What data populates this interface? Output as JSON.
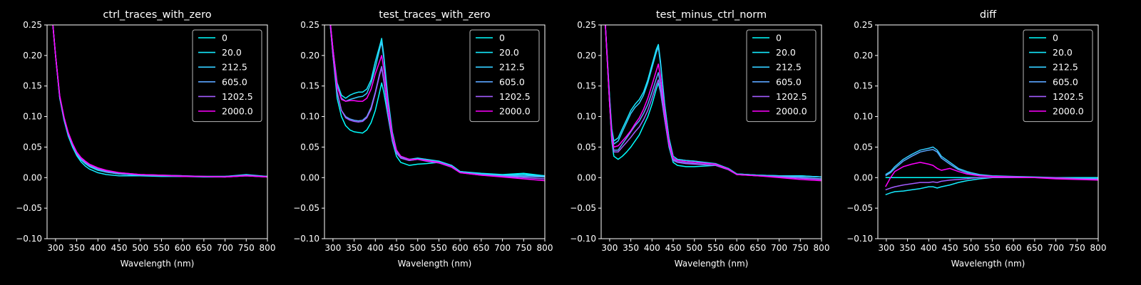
{
  "figure": {
    "background": "#000000",
    "foreground": "#ffffff"
  },
  "legend_labels": [
    "0",
    "20.0",
    "212.5",
    "605.0",
    "1202.5",
    "2000.0"
  ],
  "series_colors": [
    "#00ffff",
    "#14ebff",
    "#33ccff",
    "#5aa5ff",
    "#a35cff",
    "#ff00ff"
  ],
  "chart_data": [
    {
      "type": "line",
      "title": "ctrl_traces_with_zero",
      "xlabel": "Wavelength (nm)",
      "ylabel": "",
      "xlim": [
        280,
        800
      ],
      "ylim": [
        -0.1,
        0.25
      ],
      "xticks": [
        300,
        350,
        400,
        450,
        500,
        550,
        600,
        650,
        700,
        750,
        800
      ],
      "yticks": [
        -0.1,
        -0.05,
        0.0,
        0.05,
        0.1,
        0.15,
        0.2,
        0.25
      ],
      "ytick_labels": [
        "−0.10",
        "−0.05",
        "0.00",
        "0.05",
        "0.10",
        "0.15",
        "0.20",
        "0.25"
      ],
      "legend": "upper right",
      "x": [
        290,
        300,
        310,
        320,
        330,
        340,
        350,
        360,
        370,
        380,
        400,
        420,
        450,
        500,
        550,
        600,
        650,
        700,
        750,
        800
      ],
      "series": [
        {
          "name": "0",
          "values": [
            0.28,
            0.2,
            0.13,
            0.095,
            0.07,
            0.052,
            0.038,
            0.029,
            0.023,
            0.018,
            0.012,
            0.009,
            0.006,
            0.004,
            0.003,
            0.002,
            0.002,
            0.002,
            0.004,
            0.002
          ]
        },
        {
          "name": "20.0",
          "values": [
            0.28,
            0.2,
            0.13,
            0.094,
            0.068,
            0.05,
            0.036,
            0.026,
            0.019,
            0.014,
            0.008,
            0.005,
            0.003,
            0.003,
            0.002,
            0.002,
            0.001,
            0.001,
            0.003,
            0.001
          ]
        },
        {
          "name": "212.5",
          "values": [
            0.28,
            0.2,
            0.132,
            0.097,
            0.072,
            0.054,
            0.04,
            0.031,
            0.025,
            0.02,
            0.014,
            0.01,
            0.007,
            0.005,
            0.004,
            0.003,
            0.002,
            0.002,
            0.005,
            0.002
          ]
        },
        {
          "name": "605.0",
          "values": [
            0.28,
            0.2,
            0.131,
            0.096,
            0.071,
            0.053,
            0.039,
            0.03,
            0.024,
            0.019,
            0.013,
            0.009,
            0.006,
            0.004,
            0.003,
            0.002,
            0.002,
            0.002,
            0.004,
            0.002
          ]
        },
        {
          "name": "1202.5",
          "values": [
            0.28,
            0.2,
            0.133,
            0.098,
            0.073,
            0.055,
            0.041,
            0.032,
            0.026,
            0.021,
            0.015,
            0.011,
            0.008,
            0.005,
            0.004,
            0.003,
            0.002,
            0.001,
            0.003,
            0.001
          ]
        },
        {
          "name": "2000.0",
          "values": [
            0.28,
            0.2,
            0.134,
            0.099,
            0.074,
            0.056,
            0.042,
            0.033,
            0.027,
            0.022,
            0.016,
            0.012,
            0.008,
            0.005,
            0.004,
            0.002,
            0.002,
            0.001,
            0.003,
            0.001
          ]
        }
      ]
    },
    {
      "type": "line",
      "title": "test_traces_with_zero",
      "xlabel": "Wavelength (nm)",
      "ylabel": "",
      "xlim": [
        280,
        800
      ],
      "ylim": [
        -0.1,
        0.25
      ],
      "xticks": [
        300,
        350,
        400,
        450,
        500,
        550,
        600,
        650,
        700,
        750,
        800
      ],
      "yticks": [
        -0.1,
        -0.05,
        0.0,
        0.05,
        0.1,
        0.15,
        0.2,
        0.25
      ],
      "ytick_labels": [
        "−0.10",
        "−0.05",
        "0.00",
        "0.05",
        "0.10",
        "0.15",
        "0.20",
        "0.25"
      ],
      "legend": "upper right",
      "x": [
        290,
        300,
        310,
        320,
        330,
        340,
        350,
        360,
        370,
        380,
        390,
        400,
        410,
        415,
        420,
        430,
        440,
        450,
        460,
        480,
        500,
        520,
        550,
        580,
        600,
        650,
        700,
        750,
        800
      ],
      "series": [
        {
          "name": "0",
          "values": [
            0.28,
            0.2,
            0.13,
            0.1,
            0.085,
            0.078,
            0.075,
            0.074,
            0.073,
            0.078,
            0.09,
            0.11,
            0.14,
            0.155,
            0.14,
            0.1,
            0.06,
            0.035,
            0.025,
            0.02,
            0.022,
            0.023,
            0.025,
            0.02,
            0.01,
            0.007,
            0.005,
            0.007,
            0.003
          ]
        },
        {
          "name": "20.0",
          "values": [
            0.28,
            0.21,
            0.155,
            0.135,
            0.13,
            0.135,
            0.138,
            0.14,
            0.14,
            0.145,
            0.16,
            0.19,
            0.215,
            0.228,
            0.2,
            0.13,
            0.075,
            0.045,
            0.035,
            0.03,
            0.032,
            0.03,
            0.027,
            0.02,
            0.01,
            0.006,
            0.004,
            0.005,
            0.003
          ]
        },
        {
          "name": "212.5",
          "values": [
            0.28,
            0.21,
            0.15,
            0.13,
            0.125,
            0.128,
            0.13,
            0.132,
            0.133,
            0.138,
            0.155,
            0.18,
            0.21,
            0.222,
            0.195,
            0.125,
            0.072,
            0.043,
            0.034,
            0.03,
            0.031,
            0.03,
            0.026,
            0.02,
            0.01,
            0.006,
            0.004,
            0.004,
            0.002
          ]
        },
        {
          "name": "605.0",
          "values": [
            0.28,
            0.2,
            0.14,
            0.11,
            0.1,
            0.096,
            0.094,
            0.093,
            0.094,
            0.1,
            0.115,
            0.14,
            0.17,
            0.182,
            0.16,
            0.105,
            0.062,
            0.04,
            0.032,
            0.028,
            0.03,
            0.028,
            0.025,
            0.018,
            0.009,
            0.005,
            0.003,
            0.002,
            0.001
          ]
        },
        {
          "name": "1202.5",
          "values": [
            0.28,
            0.2,
            0.14,
            0.11,
            0.098,
            0.094,
            0.092,
            0.091,
            0.092,
            0.098,
            0.112,
            0.138,
            0.168,
            0.18,
            0.158,
            0.104,
            0.062,
            0.04,
            0.032,
            0.028,
            0.03,
            0.027,
            0.024,
            0.017,
            0.008,
            0.004,
            0.002,
            0.0,
            -0.002
          ]
        },
        {
          "name": "2000.0",
          "values": [
            0.28,
            0.21,
            0.15,
            0.128,
            0.125,
            0.126,
            0.126,
            0.125,
            0.125,
            0.13,
            0.145,
            0.17,
            0.19,
            0.2,
            0.178,
            0.118,
            0.07,
            0.045,
            0.035,
            0.03,
            0.03,
            0.028,
            0.025,
            0.018,
            0.008,
            0.004,
            0.001,
            -0.002,
            -0.005
          ]
        }
      ]
    },
    {
      "type": "line",
      "title": "test_minus_ctrl_norm",
      "xlabel": "Wavelength (nm)",
      "ylabel": "",
      "xlim": [
        280,
        800
      ],
      "ylim": [
        -0.1,
        0.25
      ],
      "xticks": [
        300,
        350,
        400,
        450,
        500,
        550,
        600,
        650,
        700,
        750,
        800
      ],
      "yticks": [
        -0.1,
        -0.05,
        0.0,
        0.05,
        0.1,
        0.15,
        0.2,
        0.25
      ],
      "ytick_labels": [
        "−0.10",
        "−0.05",
        "0.00",
        "0.05",
        "0.10",
        "0.15",
        "0.20",
        "0.25"
      ],
      "legend": "upper right",
      "x": [
        290,
        300,
        305,
        310,
        320,
        330,
        340,
        350,
        360,
        370,
        380,
        390,
        400,
        410,
        415,
        420,
        430,
        440,
        450,
        460,
        480,
        500,
        550,
        580,
        600,
        650,
        700,
        750,
        800
      ],
      "series": [
        {
          "name": "0",
          "values": [
            0.25,
            0.12,
            0.06,
            0.035,
            0.03,
            0.035,
            0.042,
            0.05,
            0.06,
            0.07,
            0.085,
            0.1,
            0.12,
            0.145,
            0.155,
            0.14,
            0.095,
            0.05,
            0.025,
            0.02,
            0.018,
            0.018,
            0.02,
            0.014,
            0.006,
            0.004,
            0.003,
            0.003,
            0.001
          ]
        },
        {
          "name": "20.0",
          "values": [
            0.25,
            0.13,
            0.08,
            0.06,
            0.065,
            0.08,
            0.095,
            0.11,
            0.12,
            0.128,
            0.14,
            0.16,
            0.185,
            0.21,
            0.218,
            0.19,
            0.12,
            0.065,
            0.035,
            0.03,
            0.028,
            0.027,
            0.023,
            0.015,
            0.006,
            0.004,
            0.003,
            0.003,
            0.001
          ]
        },
        {
          "name": "212.5",
          "values": [
            0.25,
            0.13,
            0.075,
            0.055,
            0.06,
            0.075,
            0.09,
            0.105,
            0.115,
            0.122,
            0.135,
            0.155,
            0.18,
            0.205,
            0.214,
            0.186,
            0.118,
            0.064,
            0.035,
            0.03,
            0.028,
            0.027,
            0.022,
            0.015,
            0.006,
            0.004,
            0.003,
            0.002,
            0.001
          ]
        },
        {
          "name": "605.0",
          "values": [
            0.25,
            0.12,
            0.065,
            0.045,
            0.045,
            0.055,
            0.065,
            0.075,
            0.085,
            0.093,
            0.105,
            0.12,
            0.14,
            0.162,
            0.172,
            0.152,
            0.1,
            0.055,
            0.03,
            0.026,
            0.024,
            0.023,
            0.02,
            0.013,
            0.005,
            0.003,
            0.002,
            0.0,
            -0.002
          ]
        },
        {
          "name": "1202.5",
          "values": [
            0.25,
            0.12,
            0.062,
            0.042,
            0.042,
            0.05,
            0.058,
            0.066,
            0.075,
            0.083,
            0.095,
            0.11,
            0.13,
            0.152,
            0.16,
            0.142,
            0.095,
            0.052,
            0.028,
            0.025,
            0.023,
            0.022,
            0.02,
            0.013,
            0.005,
            0.003,
            0.001,
            -0.001,
            -0.003
          ]
        },
        {
          "name": "2000.0",
          "values": [
            0.25,
            0.12,
            0.07,
            0.05,
            0.052,
            0.06,
            0.068,
            0.077,
            0.088,
            0.098,
            0.112,
            0.13,
            0.152,
            0.175,
            0.186,
            0.165,
            0.108,
            0.058,
            0.032,
            0.028,
            0.026,
            0.025,
            0.022,
            0.014,
            0.005,
            0.003,
            0.0,
            -0.003,
            -0.005
          ]
        }
      ]
    },
    {
      "type": "line",
      "title": "diff",
      "xlabel": "Wavelength (nm)",
      "ylabel": "",
      "xlim": [
        280,
        800
      ],
      "ylim": [
        -0.1,
        0.25
      ],
      "xticks": [
        300,
        350,
        400,
        450,
        500,
        550,
        600,
        650,
        700,
        750,
        800
      ],
      "yticks": [
        -0.1,
        -0.05,
        0.0,
        0.05,
        0.1,
        0.15,
        0.2,
        0.25
      ],
      "ytick_labels": [
        "−0.10",
        "−0.05",
        "0.00",
        "0.05",
        "0.10",
        "0.15",
        "0.20",
        "0.25"
      ],
      "legend": "upper right",
      "x": [
        298,
        310,
        320,
        340,
        360,
        380,
        400,
        410,
        420,
        430,
        450,
        470,
        490,
        500,
        520,
        550,
        600,
        650,
        700,
        750,
        800
      ],
      "series": [
        {
          "name": "0",
          "values": [
            0.0,
            0.0,
            0.0,
            0.0,
            0.0,
            0.0,
            0.0,
            0.0,
            0.0,
            0.0,
            0.0,
            0.0,
            0.0,
            0.0,
            0.0,
            0.0,
            0.0,
            0.0,
            0.0,
            0.0,
            0.0
          ]
        },
        {
          "name": "20.0",
          "values": [
            -0.028,
            -0.025,
            -0.023,
            -0.022,
            -0.02,
            -0.018,
            -0.015,
            -0.015,
            -0.017,
            -0.015,
            -0.012,
            -0.008,
            -0.005,
            -0.004,
            -0.002,
            0.0,
            0.0,
            0.0,
            0.0,
            -0.001,
            0.0
          ]
        },
        {
          "name": "212.5",
          "values": [
            0.005,
            0.01,
            0.018,
            0.03,
            0.038,
            0.045,
            0.048,
            0.05,
            0.045,
            0.035,
            0.025,
            0.015,
            0.01,
            0.008,
            0.005,
            0.003,
            0.002,
            0.001,
            0.0,
            -0.001,
            -0.002
          ]
        },
        {
          "name": "605.0",
          "values": [
            0.003,
            0.008,
            0.015,
            0.027,
            0.035,
            0.042,
            0.045,
            0.046,
            0.042,
            0.032,
            0.022,
            0.013,
            0.008,
            0.006,
            0.004,
            0.002,
            0.001,
            0.0,
            -0.001,
            -0.002,
            -0.002
          ]
        },
        {
          "name": "1202.5",
          "values": [
            -0.02,
            -0.017,
            -0.015,
            -0.012,
            -0.01,
            -0.008,
            -0.008,
            -0.007,
            -0.008,
            -0.006,
            -0.004,
            -0.003,
            -0.002,
            -0.001,
            0.0,
            0.0,
            0.0,
            0.0,
            0.0,
            -0.002,
            -0.003
          ]
        },
        {
          "name": "2000.0",
          "values": [
            -0.015,
            0.0,
            0.01,
            0.018,
            0.022,
            0.025,
            0.022,
            0.02,
            0.015,
            0.012,
            0.015,
            0.01,
            0.006,
            0.005,
            0.003,
            0.002,
            0.001,
            0.0,
            -0.002,
            -0.003,
            -0.004
          ]
        }
      ]
    }
  ]
}
